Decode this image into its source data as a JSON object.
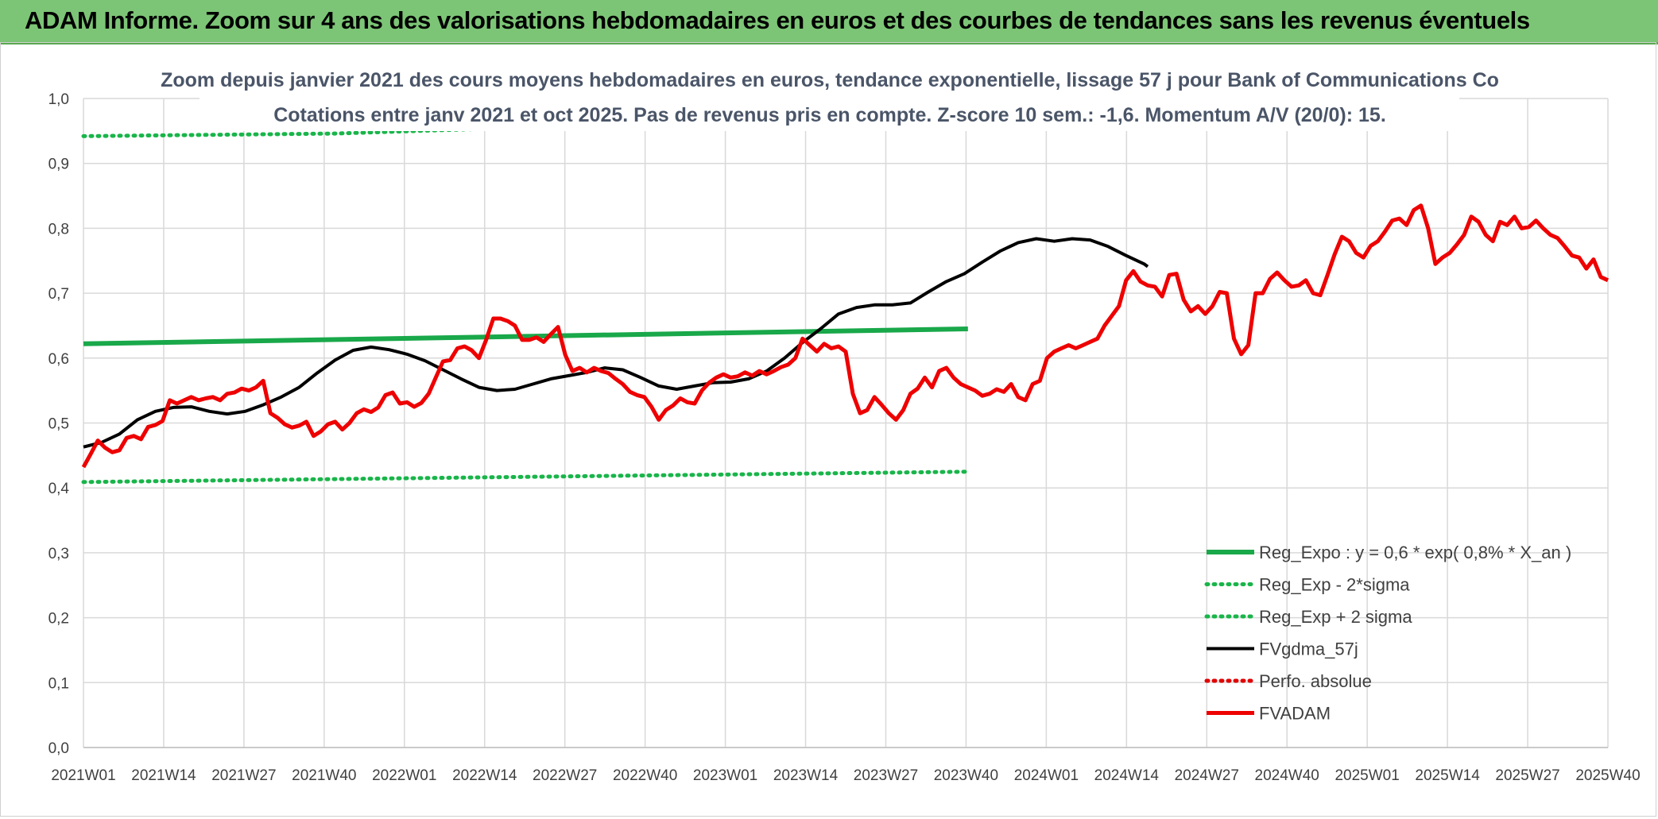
{
  "header": {
    "title": "ADAM Informe. Zoom sur 4 ans des valorisations hebdomadaires en euros et des courbes de tendances sans les revenus éventuels"
  },
  "colors": {
    "banner": "#7cc576",
    "reg_expo": "#19a84a",
    "bands": "#19b54a",
    "fvgdma": "#000000",
    "perfo": "#e00000",
    "fvadam": "#ee0000",
    "grid": "#d9d9d9"
  },
  "chart_data": {
    "type": "line",
    "title": "Zoom depuis janvier 2021 des cours moyens hebdomadaires en euros, tendance exponentielle, lissage 57 j pour Bank of Communications Co",
    "subtitle": "Cotations entre janv 2021 et oct 2025. Pas de revenus pris en compte. Z-score 10 sem.: -1,6. Momentum A/V (20/0): 15.",
    "xlabel": "",
    "ylabel": "",
    "ylim": [
      0,
      1
    ],
    "y_ticks": [
      "0,0",
      "0,1",
      "0,2",
      "0,3",
      "0,4",
      "0,5",
      "0,6",
      "0,7",
      "0,8",
      "0,9",
      "1,0"
    ],
    "x_ticks": [
      "2021W01",
      "2021W14",
      "2021W27",
      "2021W40",
      "2022W01",
      "2022W14",
      "2022W27",
      "2022W40",
      "2023W01",
      "2023W14",
      "2023W27",
      "2023W40",
      "2024W01",
      "2024W14",
      "2024W27",
      "2024W40",
      "2025W01",
      "2025W14",
      "2025W27",
      "2025W40"
    ],
    "x_week_count": 247,
    "grid": true,
    "legend_position": "bottom-right",
    "series": [
      {
        "name": "Reg_Expo : y = 0,6 * exp( 0,8% *  X_an )",
        "style": "solid-thick",
        "color": "#19a84a",
        "points": [
          [
            0,
            0.622
          ],
          [
            246,
            0.645
          ]
        ]
      },
      {
        "name": "Reg_Exp - 2*sigma",
        "style": "dotted",
        "color": "#19b54a",
        "points": [
          [
            0,
            0.409
          ],
          [
            246,
            0.425
          ]
        ]
      },
      {
        "name": "Reg_Exp + 2 sigma",
        "style": "dotted",
        "color": "#19b54a",
        "points": [
          [
            0,
            0.942
          ],
          [
            70,
            0.946
          ],
          [
            246,
            0.977
          ]
        ]
      },
      {
        "name": "FVgdma_57j",
        "style": "solid",
        "color": "#000000",
        "points": [
          [
            0,
            0.463
          ],
          [
            5,
            0.47
          ],
          [
            10,
            0.483
          ],
          [
            15,
            0.505
          ],
          [
            20,
            0.518
          ],
          [
            25,
            0.524
          ],
          [
            30,
            0.525
          ],
          [
            35,
            0.518
          ],
          [
            40,
            0.514
          ],
          [
            45,
            0.518
          ],
          [
            50,
            0.528
          ],
          [
            55,
            0.54
          ],
          [
            60,
            0.555
          ],
          [
            65,
            0.577
          ],
          [
            70,
            0.597
          ],
          [
            75,
            0.612
          ],
          [
            80,
            0.617
          ],
          [
            85,
            0.613
          ],
          [
            90,
            0.606
          ],
          [
            95,
            0.596
          ],
          [
            100,
            0.582
          ],
          [
            105,
            0.568
          ],
          [
            110,
            0.555
          ],
          [
            115,
            0.55
          ],
          [
            120,
            0.552
          ],
          [
            125,
            0.56
          ],
          [
            130,
            0.568
          ],
          [
            135,
            0.573
          ],
          [
            140,
            0.578
          ],
          [
            145,
            0.585
          ],
          [
            150,
            0.582
          ],
          [
            155,
            0.57
          ],
          [
            160,
            0.557
          ],
          [
            165,
            0.552
          ],
          [
            170,
            0.557
          ],
          [
            175,
            0.562
          ],
          [
            180,
            0.563
          ],
          [
            185,
            0.568
          ],
          [
            190,
            0.58
          ],
          [
            195,
            0.6
          ],
          [
            200,
            0.624
          ],
          [
            205,
            0.645
          ],
          [
            210,
            0.668
          ],
          [
            215,
            0.678
          ],
          [
            220,
            0.682
          ],
          [
            225,
            0.682
          ],
          [
            230,
            0.685
          ],
          [
            235,
            0.702
          ],
          [
            240,
            0.718
          ],
          [
            245,
            0.73
          ],
          [
            250,
            0.748
          ],
          [
            255,
            0.765
          ],
          [
            260,
            0.778
          ],
          [
            265,
            0.784
          ],
          [
            270,
            0.78
          ],
          [
            275,
            0.784
          ],
          [
            280,
            0.782
          ],
          [
            285,
            0.772
          ],
          [
            290,
            0.758
          ],
          [
            295,
            0.745
          ],
          [
            296,
            0.741
          ]
        ]
      },
      {
        "name": "Perfo. absolue",
        "style": "dotted",
        "color": "#e00000",
        "points": []
      },
      {
        "name": "FVADAM",
        "style": "solid-thick",
        "color": "#ee0000",
        "points": [
          [
            0,
            0.432
          ],
          [
            2,
            0.452
          ],
          [
            4,
            0.473
          ],
          [
            6,
            0.462
          ],
          [
            8,
            0.455
          ],
          [
            10,
            0.458
          ],
          [
            12,
            0.477
          ],
          [
            14,
            0.48
          ],
          [
            16,
            0.475
          ],
          [
            18,
            0.494
          ],
          [
            20,
            0.497
          ],
          [
            22,
            0.503
          ],
          [
            24,
            0.535
          ],
          [
            26,
            0.53
          ],
          [
            28,
            0.535
          ],
          [
            30,
            0.54
          ],
          [
            32,
            0.535
          ],
          [
            34,
            0.538
          ],
          [
            36,
            0.54
          ],
          [
            38,
            0.535
          ],
          [
            40,
            0.545
          ],
          [
            42,
            0.547
          ],
          [
            44,
            0.553
          ],
          [
            46,
            0.55
          ],
          [
            48,
            0.555
          ],
          [
            50,
            0.565
          ],
          [
            52,
            0.515
          ],
          [
            54,
            0.508
          ],
          [
            56,
            0.498
          ],
          [
            58,
            0.493
          ],
          [
            60,
            0.496
          ],
          [
            62,
            0.502
          ],
          [
            64,
            0.48
          ],
          [
            66,
            0.487
          ],
          [
            68,
            0.498
          ],
          [
            70,
            0.502
          ],
          [
            72,
            0.49
          ],
          [
            74,
            0.5
          ],
          [
            76,
            0.515
          ],
          [
            78,
            0.521
          ],
          [
            80,
            0.517
          ],
          [
            82,
            0.524
          ],
          [
            84,
            0.543
          ],
          [
            86,
            0.547
          ],
          [
            88,
            0.53
          ],
          [
            90,
            0.532
          ],
          [
            92,
            0.525
          ],
          [
            94,
            0.531
          ],
          [
            96,
            0.545
          ],
          [
            98,
            0.57
          ],
          [
            100,
            0.595
          ],
          [
            102,
            0.597
          ],
          [
            104,
            0.615
          ],
          [
            106,
            0.618
          ],
          [
            108,
            0.612
          ],
          [
            110,
            0.6
          ],
          [
            112,
            0.628
          ],
          [
            114,
            0.661
          ],
          [
            116,
            0.661
          ],
          [
            118,
            0.657
          ],
          [
            120,
            0.65
          ],
          [
            122,
            0.628
          ],
          [
            124,
            0.628
          ],
          [
            126,
            0.632
          ],
          [
            128,
            0.625
          ],
          [
            130,
            0.637
          ],
          [
            132,
            0.648
          ],
          [
            134,
            0.605
          ],
          [
            136,
            0.58
          ],
          [
            138,
            0.585
          ],
          [
            140,
            0.578
          ],
          [
            142,
            0.585
          ],
          [
            144,
            0.58
          ],
          [
            146,
            0.577
          ],
          [
            148,
            0.568
          ],
          [
            150,
            0.56
          ],
          [
            152,
            0.548
          ],
          [
            154,
            0.543
          ],
          [
            156,
            0.54
          ],
          [
            158,
            0.525
          ],
          [
            160,
            0.505
          ],
          [
            162,
            0.52
          ],
          [
            164,
            0.527
          ],
          [
            166,
            0.538
          ],
          [
            168,
            0.532
          ],
          [
            170,
            0.53
          ],
          [
            172,
            0.55
          ],
          [
            174,
            0.562
          ],
          [
            176,
            0.57
          ],
          [
            178,
            0.575
          ],
          [
            180,
            0.57
          ],
          [
            182,
            0.572
          ],
          [
            184,
            0.578
          ],
          [
            186,
            0.573
          ],
          [
            188,
            0.58
          ],
          [
            190,
            0.575
          ],
          [
            192,
            0.58
          ],
          [
            194,
            0.586
          ],
          [
            196,
            0.59
          ],
          [
            198,
            0.6
          ],
          [
            200,
            0.63
          ],
          [
            202,
            0.62
          ],
          [
            204,
            0.61
          ],
          [
            206,
            0.622
          ],
          [
            208,
            0.615
          ],
          [
            210,
            0.618
          ],
          [
            212,
            0.61
          ],
          [
            214,
            0.545
          ],
          [
            216,
            0.515
          ],
          [
            218,
            0.52
          ],
          [
            220,
            0.54
          ],
          [
            222,
            0.528
          ],
          [
            224,
            0.515
          ],
          [
            226,
            0.505
          ],
          [
            228,
            0.52
          ],
          [
            230,
            0.545
          ],
          [
            232,
            0.553
          ],
          [
            234,
            0.57
          ],
          [
            236,
            0.555
          ],
          [
            238,
            0.58
          ],
          [
            240,
            0.585
          ],
          [
            242,
            0.57
          ],
          [
            244,
            0.56
          ],
          [
            246,
            0.555
          ],
          [
            248,
            0.55
          ],
          [
            250,
            0.542
          ],
          [
            252,
            0.545
          ],
          [
            254,
            0.552
          ],
          [
            256,
            0.548
          ],
          [
            258,
            0.56
          ],
          [
            260,
            0.54
          ],
          [
            262,
            0.535
          ],
          [
            264,
            0.56
          ],
          [
            266,
            0.565
          ],
          [
            268,
            0.6
          ],
          [
            270,
            0.61
          ],
          [
            272,
            0.615
          ],
          [
            274,
            0.62
          ],
          [
            276,
            0.615
          ],
          [
            278,
            0.62
          ],
          [
            280,
            0.625
          ],
          [
            282,
            0.63
          ],
          [
            284,
            0.65
          ],
          [
            286,
            0.665
          ],
          [
            288,
            0.68
          ],
          [
            290,
            0.72
          ],
          [
            292,
            0.734
          ],
          [
            294,
            0.718
          ],
          [
            296,
            0.712
          ],
          [
            298,
            0.71
          ],
          [
            300,
            0.695
          ],
          [
            302,
            0.728
          ],
          [
            304,
            0.73
          ],
          [
            306,
            0.69
          ],
          [
            308,
            0.672
          ],
          [
            310,
            0.68
          ],
          [
            312,
            0.668
          ],
          [
            314,
            0.68
          ],
          [
            316,
            0.702
          ],
          [
            318,
            0.7
          ],
          [
            320,
            0.63
          ],
          [
            322,
            0.606
          ],
          [
            324,
            0.62
          ],
          [
            326,
            0.7
          ],
          [
            328,
            0.7
          ],
          [
            330,
            0.722
          ],
          [
            332,
            0.732
          ],
          [
            334,
            0.72
          ],
          [
            336,
            0.71
          ],
          [
            338,
            0.712
          ],
          [
            340,
            0.72
          ],
          [
            342,
            0.7
          ],
          [
            344,
            0.697
          ],
          [
            346,
            0.728
          ],
          [
            348,
            0.76
          ],
          [
            350,
            0.787
          ],
          [
            352,
            0.78
          ],
          [
            354,
            0.762
          ],
          [
            356,
            0.755
          ],
          [
            358,
            0.773
          ],
          [
            360,
            0.78
          ],
          [
            362,
            0.795
          ],
          [
            364,
            0.812
          ],
          [
            366,
            0.815
          ],
          [
            368,
            0.805
          ],
          [
            370,
            0.828
          ],
          [
            372,
            0.835
          ],
          [
            374,
            0.8
          ],
          [
            376,
            0.745
          ],
          [
            378,
            0.755
          ],
          [
            380,
            0.762
          ],
          [
            382,
            0.775
          ],
          [
            384,
            0.79
          ],
          [
            386,
            0.818
          ],
          [
            388,
            0.81
          ],
          [
            390,
            0.79
          ],
          [
            392,
            0.78
          ],
          [
            394,
            0.81
          ],
          [
            396,
            0.805
          ],
          [
            398,
            0.818
          ],
          [
            400,
            0.8
          ],
          [
            402,
            0.802
          ],
          [
            404,
            0.812
          ],
          [
            406,
            0.8
          ],
          [
            408,
            0.79
          ],
          [
            410,
            0.785
          ],
          [
            412,
            0.772
          ],
          [
            414,
            0.758
          ],
          [
            416,
            0.755
          ],
          [
            418,
            0.738
          ],
          [
            420,
            0.752
          ],
          [
            422,
            0.725
          ],
          [
            424,
            0.72
          ]
        ]
      }
    ]
  }
}
